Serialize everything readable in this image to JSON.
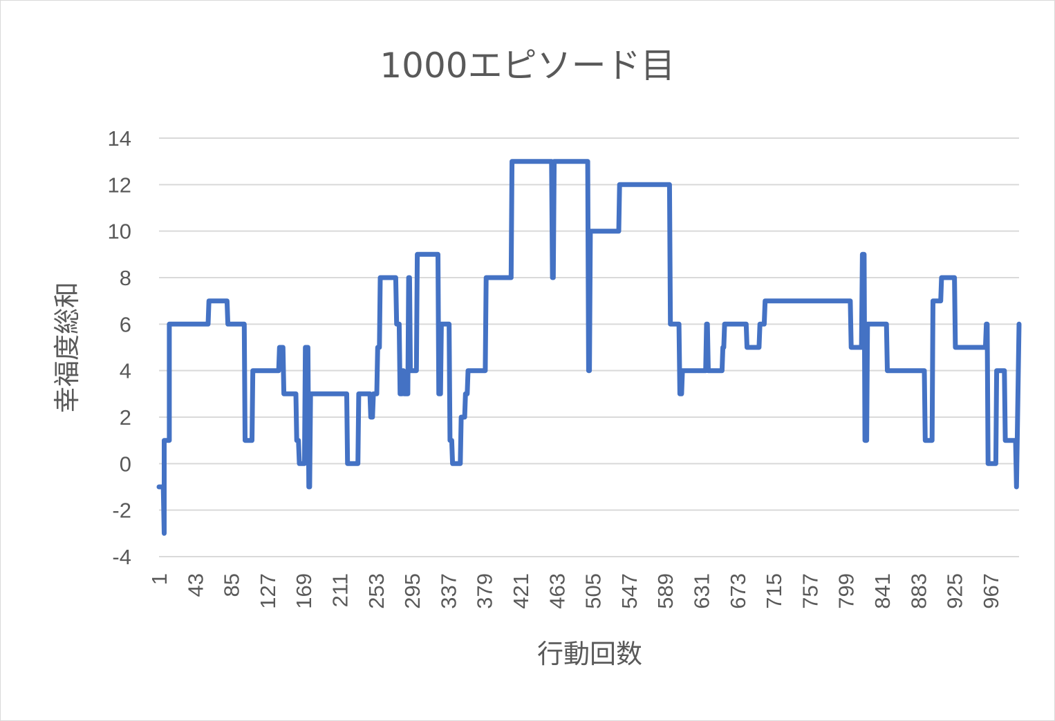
{
  "chart_data": {
    "type": "line",
    "title": "1000エピソード目",
    "xlabel": "行動回数",
    "ylabel": "幸福度総和",
    "ylim": [
      -4,
      14
    ],
    "yticks": [
      "-4",
      "-2",
      "0",
      "2",
      "4",
      "6",
      "8",
      "10",
      "12",
      "14"
    ],
    "xticks": [
      "1",
      "43",
      "85",
      "127",
      "169",
      "211",
      "253",
      "295",
      "337",
      "379",
      "421",
      "463",
      "505",
      "547",
      "589",
      "631",
      "673",
      "715",
      "757",
      "799",
      "841",
      "883",
      "925",
      "967"
    ],
    "x_range": [
      1,
      1000
    ],
    "grid": true,
    "legend": "none",
    "line_color": "#4472c4",
    "series": [
      {
        "x": [
          1,
          6,
          7,
          7,
          12,
          12,
          13,
          13,
          58,
          59,
          80,
          81,
          100,
          101,
          104,
          105,
          109,
          110,
          140,
          141,
          145,
          146,
          160,
          161,
          163,
          164,
          170,
          171,
          174,
          175,
          176,
          177,
          219,
          220,
          232,
          233,
          246,
          247,
          249,
          250,
          254,
          255,
          257,
          258,
          276,
          277,
          280,
          281,
          283,
          284,
          285,
          286,
          290,
          291,
          292,
          293,
          298,
          299,
          300,
          301,
          305,
          306,
          325,
          326,
          328,
          329,
          338,
          339,
          341,
          342,
          351,
          352,
          356,
          357,
          359,
          360,
          380,
          381,
          410,
          411,
          457,
          458,
          459,
          460,
          499,
          500,
          501,
          502,
          535,
          536,
          594,
          595,
          605,
          606,
          608,
          609,
          636,
          637,
          638,
          639,
          655,
          656,
          657,
          658,
          683,
          684,
          698,
          699,
          704,
          705,
          804,
          805,
          817,
          818,
          820,
          821,
          823,
          824,
          846,
          847,
          890,
          891,
          899,
          900,
          909,
          910,
          925,
          926,
          961,
          962,
          963,
          964,
          967,
          968,
          968,
          969,
          973,
          974,
          983,
          984,
          992,
          993,
          996,
          997,
          1000
        ],
        "y": [
          -1,
          -1,
          -3,
          1,
          1,
          1,
          1,
          6,
          6,
          7,
          7,
          6,
          6,
          1,
          1,
          1,
          1,
          4,
          4,
          5,
          5,
          3,
          3,
          1,
          1,
          0,
          0,
          5,
          5,
          -1,
          -1,
          3,
          3,
          0,
          0,
          3,
          3,
          2,
          2,
          3,
          3,
          5,
          5,
          8,
          8,
          6,
          6,
          3,
          3,
          4,
          4,
          3,
          3,
          8,
          8,
          4,
          4,
          4,
          4,
          9,
          9,
          9,
          9,
          3,
          3,
          6,
          6,
          1,
          1,
          0,
          0,
          2,
          2,
          3,
          3,
          4,
          4,
          8,
          8,
          13,
          13,
          8,
          8,
          13,
          13,
          4,
          4,
          10,
          10,
          12,
          12,
          6,
          6,
          3,
          3,
          4,
          4,
          6,
          6,
          4,
          4,
          5,
          5,
          6,
          6,
          5,
          5,
          6,
          6,
          7,
          7,
          5,
          5,
          9,
          9,
          1,
          1,
          6,
          6,
          4,
          4,
          1,
          1,
          7,
          7,
          8,
          8,
          5,
          5,
          6,
          6,
          0,
          0,
          0,
          0,
          0,
          0,
          4,
          4,
          1,
          1,
          1,
          1,
          -1,
          6
        ]
      }
    ]
  }
}
